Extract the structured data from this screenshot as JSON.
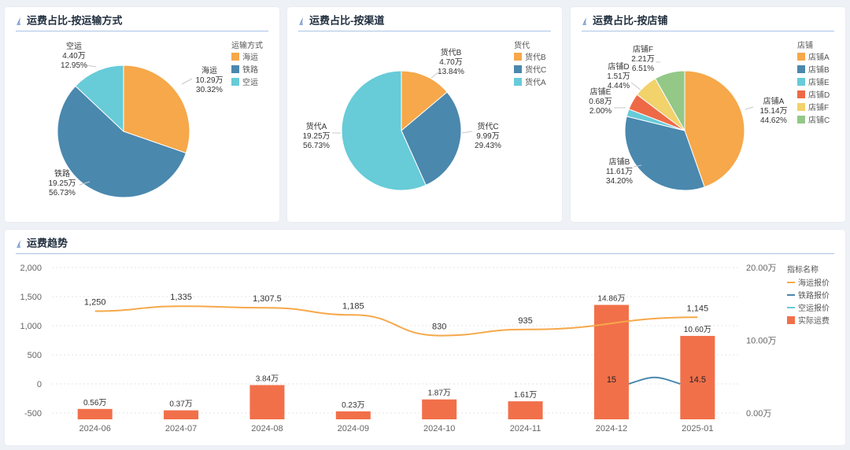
{
  "panels": [
    {
      "title": "运费占比-按运输方式",
      "legend_title": "运输方式",
      "chart_data": {
        "type": "pie",
        "title": "运费占比-按运输方式",
        "legend_title": "运输方式",
        "legend_position": "right",
        "slices": [
          {
            "name": "海运",
            "value_text": "10.29万",
            "percent_text": "30.32%",
            "value": 10.29,
            "percent": 30.32,
            "color": "#f6a84a"
          },
          {
            "name": "铁路",
            "value_text": "19.25万",
            "percent_text": "56.73%",
            "value": 19.25,
            "percent": 56.73,
            "color": "#4a88ae"
          },
          {
            "name": "空运",
            "value_text": "4.40万",
            "percent_text": "12.95%",
            "value": 4.4,
            "percent": 12.95,
            "color": "#67cbd8"
          }
        ]
      }
    },
    {
      "title": "运费占比-按渠道",
      "legend_title": "货代",
      "chart_data": {
        "type": "pie",
        "title": "运费占比-按渠道",
        "legend_title": "货代",
        "legend_position": "right",
        "slices": [
          {
            "name": "货代B",
            "value_text": "4.70万",
            "percent_text": "13.84%",
            "value": 4.7,
            "percent": 13.84,
            "color": "#f6a84a"
          },
          {
            "name": "货代C",
            "value_text": "9.99万",
            "percent_text": "29.43%",
            "value": 9.99,
            "percent": 29.43,
            "color": "#4a88ae"
          },
          {
            "name": "货代A",
            "value_text": "19.25万",
            "percent_text": "56.73%",
            "value": 19.25,
            "percent": 56.73,
            "color": "#67cbd8"
          }
        ]
      }
    },
    {
      "title": "运费占比-按店铺",
      "legend_title": "店铺",
      "chart_data": {
        "type": "pie",
        "title": "运费占比-按店铺",
        "legend_title": "店铺",
        "legend_position": "right",
        "slices": [
          {
            "name": "店铺A",
            "value_text": "15.14万",
            "percent_text": "44.62%",
            "value": 15.14,
            "percent": 44.62,
            "color": "#f6a84a"
          },
          {
            "name": "店铺B",
            "value_text": "11.61万",
            "percent_text": "34.20%",
            "value": 11.61,
            "percent": 34.2,
            "color": "#4a88ae"
          },
          {
            "name": "店铺E",
            "value_text": "0.68万",
            "percent_text": "2.00%",
            "value": 0.68,
            "percent": 2.0,
            "color": "#67cbd8"
          },
          {
            "name": "店铺D",
            "value_text": "1.51万",
            "percent_text": "4.44%",
            "value": 1.51,
            "percent": 4.44,
            "color": "#ee6a47"
          },
          {
            "name": "店铺F",
            "value_text": "2.21万",
            "percent_text": "6.51%",
            "value": 2.21,
            "percent": 6.51,
            "color": "#f1d26b"
          },
          {
            "name": "店铺C",
            "value_text": "",
            "percent_text": "",
            "value": 2.78,
            "percent": 8.23,
            "color": "#93c887"
          }
        ]
      }
    }
  ],
  "trend": {
    "title": "运费趋势",
    "legend_title": "指标名称",
    "chart_data": {
      "type": "bar",
      "title": "运费趋势",
      "legend_title": "指标名称",
      "legend_position": "right",
      "categories": [
        "2024-06",
        "2024-07",
        "2024-08",
        "2024-09",
        "2024-10",
        "2024-11",
        "2024-12",
        "2025-01"
      ],
      "y_left": {
        "min": -500,
        "max": 2000,
        "ticks": [
          "2,000",
          "1,500",
          "1,000",
          "500",
          "0",
          "-500"
        ],
        "tick_values": [
          2000,
          1500,
          1000,
          500,
          0,
          -500
        ]
      },
      "y_right": {
        "min": 0,
        "max": 20,
        "ticks": [
          "20.00万",
          "10.00万",
          "0.00万"
        ],
        "tick_values": [
          20,
          10,
          0
        ]
      },
      "grid": true,
      "series": [
        {
          "name": "海运报价",
          "kind": "line",
          "axis": "left",
          "color": "#f6a84a",
          "values": [
            1250,
            1335,
            1307.5,
            1185,
            830,
            935,
            null,
            1145
          ],
          "labels": [
            "1,250",
            "1,335",
            "1,307.5",
            "1,185",
            "830",
            "935",
            "",
            "1,145"
          ]
        },
        {
          "name": "铁路报价",
          "kind": "line",
          "axis": "left",
          "color": "#4a88ae",
          "values": [
            null,
            null,
            null,
            null,
            null,
            null,
            15,
            14.5
          ],
          "labels": [
            "",
            "",
            "",
            "",
            "",
            "",
            "15",
            "14.5"
          ]
        },
        {
          "name": "空运报价",
          "kind": "line",
          "axis": "left",
          "color": "#67cbd8",
          "values": [
            null,
            null,
            null,
            null,
            null,
            null,
            null,
            null
          ],
          "labels": [
            "",
            "",
            "",
            "",
            "",
            "",
            "",
            ""
          ]
        },
        {
          "name": "实际运费",
          "kind": "bar",
          "axis": "right",
          "color": "#f1704a",
          "values": [
            0.56,
            0.37,
            3.84,
            0.23,
            1.87,
            1.61,
            14.86,
            10.6
          ],
          "labels": [
            "0.56万",
            "0.37万",
            "3.84万",
            "0.23万",
            "1.87万",
            "1.61万",
            "14.86万",
            "10.60万"
          ]
        }
      ]
    }
  }
}
